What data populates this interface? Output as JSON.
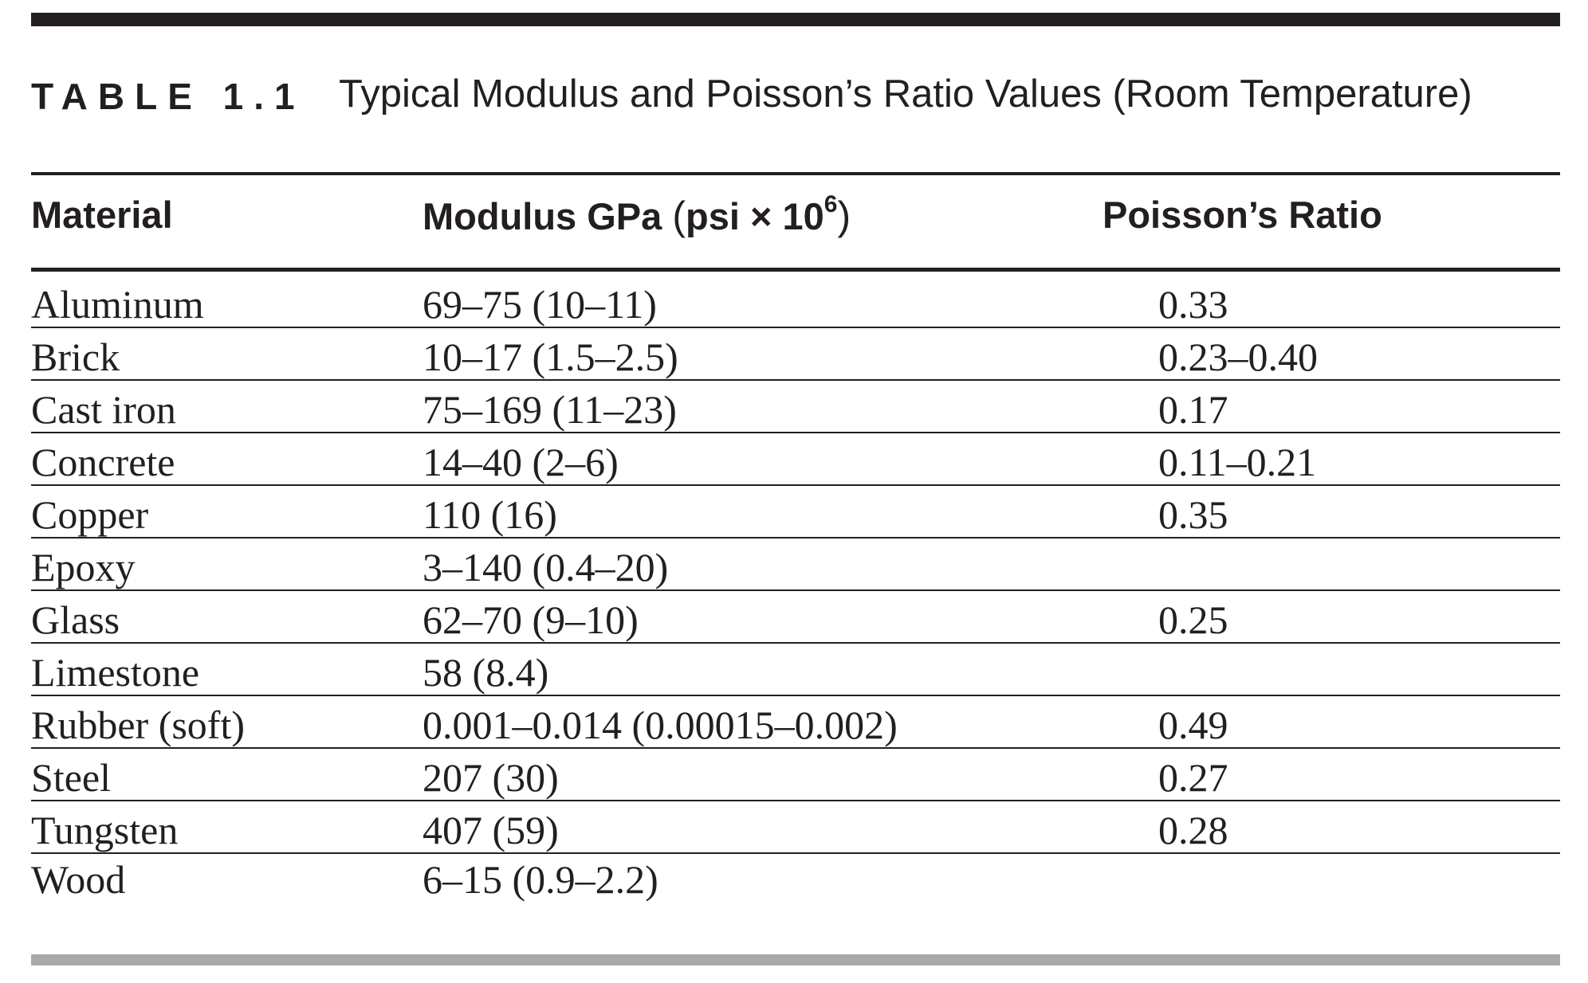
{
  "caption": {
    "label": "TABLE 1.1",
    "title": "Typical Modulus and Poisson’s Ratio Values (Room Temperature)"
  },
  "columns": {
    "material": "Material",
    "modulus_main": "Modulus GPa ",
    "modulus_paren_open": "(",
    "modulus_psi": "psi",
    "modulus_times": " × 10",
    "modulus_exp": "6",
    "modulus_paren_close": ")",
    "poisson": "Poisson’s Ratio"
  },
  "rows": [
    {
      "material": "Aluminum",
      "modulus": "69–75 (10–11)",
      "poisson": "0.33"
    },
    {
      "material": "Brick",
      "modulus": "10–17 (1.5–2.5)",
      "poisson": "0.23–0.40"
    },
    {
      "material": "Cast iron",
      "modulus": "75–169 (11–23)",
      "poisson": "0.17"
    },
    {
      "material": "Concrete",
      "modulus": "14–40 (2–6)",
      "poisson": "0.11–0.21"
    },
    {
      "material": "Copper",
      "modulus": "110 (16)",
      "poisson": "0.35"
    },
    {
      "material": "Epoxy",
      "modulus": "3–140 (0.4–20)",
      "poisson": ""
    },
    {
      "material": "Glass",
      "modulus": "62–70 (9–10)",
      "poisson": "0.25"
    },
    {
      "material": "Limestone",
      "modulus": "58 (8.4)",
      "poisson": ""
    },
    {
      "material": "Rubber (soft)",
      "modulus": "0.001–0.014 (0.00015–0.002)",
      "poisson": "0.49"
    },
    {
      "material": "Steel",
      "modulus": "207 (30)",
      "poisson": "0.27"
    },
    {
      "material": "Tungsten",
      "modulus": "407 (59)",
      "poisson": "0.28"
    },
    {
      "material": "Wood",
      "modulus": "6–15 (0.9–2.2)",
      "poisson": ""
    }
  ]
}
